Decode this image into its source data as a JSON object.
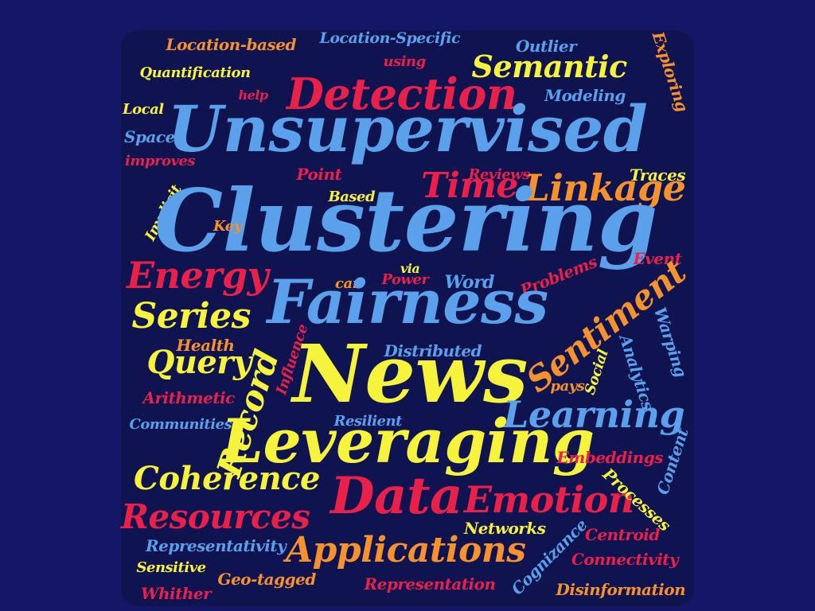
{
  "palette": {
    "blue": "#5aa0ea",
    "red": "#e8204a",
    "yellow": "#f5f33c",
    "orange": "#f5922e"
  },
  "words": [
    {
      "text": "Location-based",
      "color": "orange"
    },
    {
      "text": "Location-Specific",
      "color": "blue"
    },
    {
      "text": "Outlier",
      "color": "blue"
    },
    {
      "text": "Modeling",
      "color": "blue"
    },
    {
      "text": "Exploring",
      "color": "orange"
    },
    {
      "text": "using",
      "color": "red"
    },
    {
      "text": "Semantic",
      "color": "yellow"
    },
    {
      "text": "Quantification",
      "color": "yellow"
    },
    {
      "text": "Detection",
      "color": "red"
    },
    {
      "text": "help",
      "color": "red"
    },
    {
      "text": "Local",
      "color": "yellow"
    },
    {
      "text": "Unsupervised",
      "color": "blue"
    },
    {
      "text": "Modeling",
      "color": "yellow"
    },
    {
      "text": "Space",
      "color": "blue"
    },
    {
      "text": "improves",
      "color": "red"
    },
    {
      "text": "Implicit",
      "color": "yellow"
    },
    {
      "text": "Point",
      "color": "red"
    },
    {
      "text": "Based",
      "color": "yellow"
    },
    {
      "text": "Time",
      "color": "red"
    },
    {
      "text": "Reviews",
      "color": "red"
    },
    {
      "text": "Linkage",
      "color": "orange"
    },
    {
      "text": "Traces",
      "color": "yellow"
    },
    {
      "text": "Clustering",
      "color": "blue"
    },
    {
      "text": "Key",
      "color": "orange"
    },
    {
      "text": "Energy",
      "color": "red"
    },
    {
      "text": "Event",
      "color": "red"
    },
    {
      "text": "via",
      "color": "yellow"
    },
    {
      "text": "can",
      "color": "orange"
    },
    {
      "text": "Power",
      "color": "red"
    },
    {
      "text": "Word",
      "color": "blue"
    },
    {
      "text": "Problems",
      "color": "red"
    },
    {
      "text": "Fairness",
      "color": "blue"
    },
    {
      "text": "Series",
      "color": "yellow"
    },
    {
      "text": "Sentiment",
      "color": "orange"
    },
    {
      "text": "Warping",
      "color": "blue"
    },
    {
      "text": "Health",
      "color": "orange"
    },
    {
      "text": "Query",
      "color": "yellow"
    },
    {
      "text": "Record",
      "color": "yellow"
    },
    {
      "text": "Influence",
      "color": "red"
    },
    {
      "text": "News",
      "color": "yellow"
    },
    {
      "text": "Distributed",
      "color": "blue"
    },
    {
      "text": "Analytics",
      "color": "blue"
    },
    {
      "text": "Social",
      "color": "yellow"
    },
    {
      "text": "pays",
      "color": "orange"
    },
    {
      "text": "Arithmetic",
      "color": "red"
    },
    {
      "text": "Communities",
      "color": "blue"
    },
    {
      "text": "Resilient",
      "color": "blue"
    },
    {
      "text": "Learning",
      "color": "blue"
    },
    {
      "text": "Leveraging",
      "color": "yellow"
    },
    {
      "text": "Embeddings",
      "color": "red"
    },
    {
      "text": "Content",
      "color": "blue"
    },
    {
      "text": "Coherence",
      "color": "yellow"
    },
    {
      "text": "Data",
      "color": "red"
    },
    {
      "text": "Emotion",
      "color": "red"
    },
    {
      "text": "Processes",
      "color": "yellow"
    },
    {
      "text": "Resources",
      "color": "red"
    },
    {
      "text": "Networks",
      "color": "yellow"
    },
    {
      "text": "Centroid",
      "color": "red"
    },
    {
      "text": "Cognizance",
      "color": "blue"
    },
    {
      "text": "Representativity",
      "color": "blue"
    },
    {
      "text": "Applications",
      "color": "orange"
    },
    {
      "text": "Connectivity",
      "color": "red"
    },
    {
      "text": "Sensitive",
      "color": "yellow"
    },
    {
      "text": "Whither",
      "color": "red"
    },
    {
      "text": "Geo-tagged",
      "color": "orange"
    },
    {
      "text": "Representation",
      "color": "red"
    },
    {
      "text": "Disinformation",
      "color": "orange"
    }
  ]
}
